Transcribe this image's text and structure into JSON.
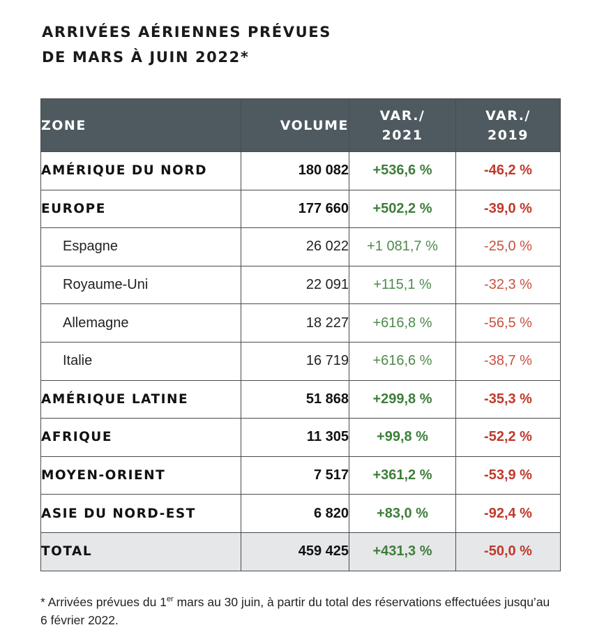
{
  "title": {
    "line1": "ARRIVÉES AÉRIENNES PRÉVUES",
    "line2": "DE MARS À JUIN 2022*"
  },
  "table": {
    "headers": {
      "zone": "ZONE",
      "volume": "VOLUME",
      "var2021_line1": "VAR./",
      "var2021_line2": "2021",
      "var2019_line1": "VAR./",
      "var2019_line2": "2019"
    },
    "rows": [
      {
        "zone": "AMÉRIQUE DU NORD",
        "volume": "180 082",
        "var2021": "+536,6 %",
        "var2019": "-46,2 %"
      },
      {
        "zone": "EUROPE",
        "volume": "177 660",
        "var2021": "+502,2 %",
        "var2019": "-39,0 %"
      },
      {
        "zone": "Espagne",
        "volume": "26 022",
        "var2021": "+1 081,7 %",
        "var2019": "-25,0 %"
      },
      {
        "zone": "Royaume-Uni",
        "volume": "22 091",
        "var2021": "+115,1 %",
        "var2019": "-32,3 %"
      },
      {
        "zone": "Allemagne",
        "volume": "18 227",
        "var2021": "+616,8 %",
        "var2019": "-56,5 %"
      },
      {
        "zone": "Italie",
        "volume": "16 719",
        "var2021": "+616,6 %",
        "var2019": "-38,7 %"
      },
      {
        "zone": "AMÉRIQUE LATINE",
        "volume": "51 868",
        "var2021": "+299,8 %",
        "var2019": "-35,3 %"
      },
      {
        "zone": "AFRIQUE",
        "volume": "11 305",
        "var2021": "+99,8 %",
        "var2019": "-52,2 %"
      },
      {
        "zone": "MOYEN-ORIENT",
        "volume": "7 517",
        "var2021": "+361,2 %",
        "var2019": "-53,9 %"
      },
      {
        "zone": "ASIE DU NORD-EST",
        "volume": "6 820",
        "var2021": "+83,0 %",
        "var2019": "-92,4 %"
      },
      {
        "zone": "TOTAL",
        "volume": "459 425",
        "var2021": "+431,3 %",
        "var2019": "-50,0 %"
      }
    ]
  },
  "footnote": {
    "prefix": "* Arrivées prévues du 1",
    "sup": "er",
    "rest": " mars au 30 juin, à partir du total des réservations effectuées jusqu’au 6 février 2022."
  },
  "colors": {
    "header_bg": "#4f5a60",
    "positive": "#3e7e3a",
    "negative": "#c0392b",
    "total_bg": "#e6e7e9"
  }
}
